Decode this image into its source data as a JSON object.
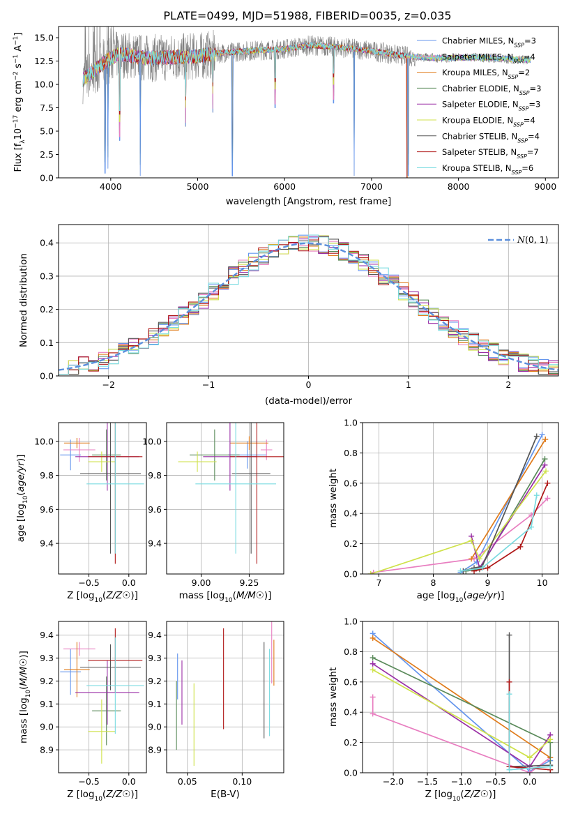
{
  "figure_title": "PLATE=0499, MJD=51988, FIBERID=0035, z=0.035",
  "series_colors": [
    "#6495ed",
    "#e87ec0",
    "#e07b1a",
    "#5a8a5a",
    "#9a2fa6",
    "#cfe24b",
    "#555555",
    "#b01818",
    "#7adbe0"
  ],
  "chart_data": [
    {
      "type": "line",
      "panel": "spectrum",
      "title": "PLATE=0499, MJD=51988, FIBERID=0035, z=0.035",
      "xlabel": "wavelength [Angstrom, rest frame]",
      "ylabel": "Flux [f_λ10^-17 erg cm^-2 s^-1 A^-1]",
      "xlim": [
        3400,
        9150
      ],
      "ylim": [
        0,
        16.2
      ],
      "xticks": [
        4000,
        5000,
        6000,
        7000,
        8000,
        9000
      ],
      "yticks": [
        0.0,
        2.5,
        5.0,
        7.5,
        10.0,
        12.5,
        15.0
      ],
      "grid": false,
      "legend_position": "top-right",
      "data_range": [
        3680,
        8830
      ],
      "continuum_knots": [
        [
          3680,
          10.5
        ],
        [
          3900,
          12.2
        ],
        [
          4100,
          13.3
        ],
        [
          4400,
          12.8
        ],
        [
          4700,
          12.9
        ],
        [
          5000,
          13.0
        ],
        [
          5300,
          13.4
        ],
        [
          5600,
          13.6
        ],
        [
          6000,
          13.8
        ],
        [
          6300,
          14.2
        ],
        [
          6600,
          14.0
        ],
        [
          7000,
          13.6
        ],
        [
          7400,
          13.0
        ],
        [
          7800,
          12.8
        ],
        [
          8200,
          12.9
        ],
        [
          8600,
          12.7
        ],
        [
          8830,
          12.6
        ]
      ],
      "absorption_dips": [
        [
          3934,
          0.5
        ],
        [
          3968,
          1.0
        ],
        [
          4102,
          4.0
        ],
        [
          4340,
          0.2
        ],
        [
          4861,
          5.5
        ],
        [
          5175,
          7.0
        ],
        [
          5400,
          0.2
        ],
        [
          5890,
          7.5
        ],
        [
          6563,
          8.0
        ],
        [
          6800,
          0.2
        ],
        [
          7420,
          0.2
        ]
      ],
      "series": [
        {
          "name": "Chabrier MILES, N_SSP=3"
        },
        {
          "name": "Salpeter MILES, N_SSP=4"
        },
        {
          "name": "Kroupa MILES, N_SSP=2"
        },
        {
          "name": "Chabrier ELODIE, N_SSP=3"
        },
        {
          "name": "Salpeter ELODIE, N_SSP=3"
        },
        {
          "name": "Kroupa ELODIE, N_SSP=4"
        },
        {
          "name": "Chabrier STELIB, N_SSP=4"
        },
        {
          "name": "Salpeter STELIB, N_SSP=7"
        },
        {
          "name": "Kroupa STELIB, N_SSP=6"
        }
      ]
    },
    {
      "type": "line",
      "panel": "residuals",
      "xlabel": "(data-model)/error",
      "ylabel": "Normed distribution",
      "xlim": [
        -2.5,
        2.5
      ],
      "ylim": [
        0,
        0.455
      ],
      "xticks": [
        -2,
        -1,
        0,
        1,
        2
      ],
      "yticks": [
        0.0,
        0.1,
        0.2,
        0.3,
        0.4
      ],
      "grid": true,
      "legend_position": "top-right",
      "legend": "N(0,1)",
      "bin_width": 0.1
    },
    {
      "type": "scatter",
      "panel": "age_vs_Z",
      "xlabel": "Z [log10(Z/Z☉)]",
      "ylabel": "age [log10(age/yr)]",
      "xlim": [
        -0.88,
        0.22
      ],
      "ylim": [
        9.22,
        10.11
      ],
      "xticks": [
        -0.5,
        0.0
      ],
      "yticks": [
        9.4,
        9.6,
        9.8,
        10.0
      ],
      "grid": true,
      "points": [
        {
          "x": -0.73,
          "y": 9.92,
          "xerr": 0.13,
          "yerr": 0.09
        },
        {
          "x": -0.62,
          "y": 9.95,
          "xerr": 0.2,
          "yerr": 0.07
        },
        {
          "x": -0.65,
          "y": 9.99,
          "xerr": 0.16,
          "yerr": 0.03
        },
        {
          "x": -0.28,
          "y": 9.92,
          "xerr": 0.18,
          "yerr": 0.15
        },
        {
          "x": -0.27,
          "y": 9.91,
          "xerr": 0.4,
          "yerr": 0.2
        },
        {
          "x": -0.34,
          "y": 9.88,
          "xerr": 0.17,
          "yerr": 0.06
        },
        {
          "x": -0.23,
          "y": 9.81,
          "xerr": 0.38,
          "yerr": 0.47
        },
        {
          "x": -0.17,
          "y": 9.91,
          "xerr": 0.34,
          "yerr": 0.63
        },
        {
          "x": -0.17,
          "y": 9.75,
          "xerr": 0.36,
          "yerr": 0.41
        }
      ]
    },
    {
      "type": "scatter",
      "panel": "age_vs_mass",
      "xlabel": "mass [log10(M/M☉)]",
      "ylabel": "",
      "xlim": [
        8.82,
        9.43
      ],
      "ylim": [
        9.22,
        10.11
      ],
      "xticks": [
        9.0,
        9.25
      ],
      "yticks": [
        9.4,
        9.6,
        9.8,
        10.0
      ],
      "grid": true,
      "points": [
        {
          "x": 9.24,
          "y": 9.92,
          "xerr": 0.1,
          "yerr": 0.08
        },
        {
          "x": 9.34,
          "y": 9.95,
          "xerr": 0.03,
          "yerr": 0.06
        },
        {
          "x": 9.25,
          "y": 9.99,
          "xerr": 0.1,
          "yerr": 0.04
        },
        {
          "x": 9.07,
          "y": 9.92,
          "xerr": 0.13,
          "yerr": 0.15
        },
        {
          "x": 9.15,
          "y": 9.91,
          "xerr": 0.14,
          "yerr": 0.2
        },
        {
          "x": 8.98,
          "y": 9.88,
          "xerr": 0.1,
          "yerr": 0.06
        },
        {
          "x": 9.26,
          "y": 9.81,
          "xerr": 0.1,
          "yerr": 0.47
        },
        {
          "x": 9.29,
          "y": 9.91,
          "xerr": 0.14,
          "yerr": 0.63
        },
        {
          "x": 9.18,
          "y": 9.75,
          "xerr": 0.21,
          "yerr": 0.41
        }
      ]
    },
    {
      "type": "line",
      "panel": "massweight_vs_age",
      "xlabel": "age [log10(age/yr)]",
      "ylabel": "mass weight",
      "xlim": [
        6.7,
        10.3
      ],
      "ylim": [
        0,
        1.0
      ],
      "xticks": [
        7,
        8,
        9,
        10
      ],
      "yticks": [
        0.0,
        0.2,
        0.4,
        0.6,
        0.8,
        1.0
      ],
      "grid": true,
      "series": [
        {
          "ages": [
            8.5,
            8.8,
            10.0
          ],
          "weights": [
            0.01,
            0.08,
            0.92
          ]
        },
        {
          "ages": [
            6.9,
            8.75,
            9.8,
            10.1
          ],
          "weights": [
            0.01,
            0.1,
            0.39,
            0.5
          ]
        },
        {
          "ages": [
            8.7,
            10.06
          ],
          "weights": [
            0.1,
            0.89
          ]
        },
        {
          "ages": [
            8.6,
            8.85,
            10.05
          ],
          "weights": [
            0.02,
            0.03,
            0.76
          ]
        },
        {
          "ages": [
            8.7,
            8.85,
            10.05
          ],
          "weights": [
            0.25,
            0.04,
            0.72
          ]
        },
        {
          "ages": [
            6.85,
            8.7,
            8.85,
            10.07
          ],
          "weights": [
            0.0,
            0.22,
            0.1,
            0.68
          ]
        },
        {
          "ages": [
            8.55,
            8.75,
            8.9,
            9.9
          ],
          "weights": [
            0.02,
            0.04,
            0.05,
            0.91
          ]
        },
        {
          "ages": [
            8.75,
            9.0,
            9.6,
            10.1
          ],
          "weights": [
            0.02,
            0.04,
            0.18,
            0.6
          ]
        },
        {
          "ages": [
            8.5,
            8.9,
            9.8,
            9.9
          ],
          "weights": [
            0.02,
            0.04,
            0.31,
            0.52
          ]
        }
      ]
    },
    {
      "type": "scatter",
      "panel": "mass_vs_Z",
      "xlabel": "Z [log10(Z/Z☉)]",
      "ylabel": "mass [log10(M/M☉)]",
      "xlim": [
        -0.88,
        0.22
      ],
      "ylim": [
        8.8,
        9.46
      ],
      "xticks": [
        -0.5,
        0.0
      ],
      "yticks": [
        8.9,
        9.0,
        9.1,
        9.2,
        9.3,
        9.4
      ],
      "grid": true,
      "points": [
        {
          "x": -0.73,
          "y": 9.24,
          "xerr": 0.13,
          "yerr": 0.1
        },
        {
          "x": -0.62,
          "y": 9.34,
          "xerr": 0.2,
          "yerr": 0.03
        },
        {
          "x": -0.65,
          "y": 9.25,
          "xerr": 0.16,
          "yerr": 0.12
        },
        {
          "x": -0.28,
          "y": 9.07,
          "xerr": 0.18,
          "yerr": 0.15
        },
        {
          "x": -0.27,
          "y": 9.15,
          "xerr": 0.4,
          "yerr": 0.14
        },
        {
          "x": -0.34,
          "y": 8.98,
          "xerr": 0.17,
          "yerr": 0.14
        },
        {
          "x": -0.23,
          "y": 9.26,
          "xerr": 0.38,
          "yerr": 0.1
        },
        {
          "x": -0.17,
          "y": 9.29,
          "xerr": 0.34,
          "yerr": 0.14
        },
        {
          "x": -0.17,
          "y": 9.18,
          "xerr": 0.36,
          "yerr": 0.21
        }
      ]
    },
    {
      "type": "scatter",
      "panel": "mass_vs_ebv",
      "xlabel": "E(B-V)",
      "ylabel": "",
      "xlim": [
        0.031,
        0.138
      ],
      "ylim": [
        8.8,
        9.46
      ],
      "xticks": [
        0.05,
        0.1
      ],
      "yticks": [
        8.9,
        9.0,
        9.1,
        9.2,
        9.3,
        9.4
      ],
      "grid": true,
      "points": [
        {
          "x": 0.041,
          "y": 9.22,
          "yerr": 0.1
        },
        {
          "x": 0.127,
          "y": 9.35,
          "yerr": 0.16
        },
        {
          "x": 0.129,
          "y": 9.28,
          "yerr": 0.1
        },
        {
          "x": 0.04,
          "y": 9.05,
          "yerr": 0.15
        },
        {
          "x": 0.045,
          "y": 9.15,
          "yerr": 0.14
        },
        {
          "x": 0.056,
          "y": 9.01,
          "yerr": 0.18
        },
        {
          "x": 0.12,
          "y": 9.16,
          "yerr": 0.21
        },
        {
          "x": 0.083,
          "y": 9.21,
          "yerr": 0.22
        },
        {
          "x": 0.125,
          "y": 9.15,
          "yerr": 0.19
        }
      ]
    },
    {
      "type": "line",
      "panel": "massweight_vs_Z",
      "xlabel": "Z [log10(Z/Z☉)]",
      "ylabel": "mass weight",
      "xlim": [
        -2.45,
        0.42
      ],
      "ylim": [
        0,
        1.0
      ],
      "xticks": [
        -2.0,
        -1.5,
        -1.0,
        -0.5,
        0.0
      ],
      "yticks": [
        0.0,
        0.2,
        0.4,
        0.6,
        0.8,
        1.0
      ],
      "grid": true,
      "series": [
        {
          "Z": [
            -2.3,
            0.0,
            0.3
          ],
          "weights": [
            0.92,
            0.01,
            0.08
          ]
        },
        {
          "Z": [
            -2.3,
            -2.3,
            0.0,
            0.3
          ],
          "weights": [
            0.5,
            0.39,
            0.0,
            0.1
          ]
        },
        {
          "Z": [
            -2.3,
            0.3
          ],
          "weights": [
            0.89,
            0.1
          ]
        },
        {
          "Z": [
            -2.3,
            0.3,
            0.3
          ],
          "weights": [
            0.76,
            0.2,
            0.02
          ]
        },
        {
          "Z": [
            -2.3,
            0.0,
            0.3
          ],
          "weights": [
            0.72,
            0.04,
            0.25
          ]
        },
        {
          "Z": [
            -2.3,
            0.0,
            0.3
          ],
          "weights": [
            0.68,
            0.1,
            0.22
          ]
        },
        {
          "Z": [
            -0.3,
            -0.3,
            0.3
          ],
          "weights": [
            0.91,
            0.04,
            0.05
          ]
        },
        {
          "Z": [
            -0.3,
            -0.3,
            0.3
          ],
          "weights": [
            0.6,
            0.04,
            0.02
          ]
        },
        {
          "Z": [
            -0.3,
            -0.3,
            0.3
          ],
          "weights": [
            0.52,
            0.02,
            0.04
          ]
        }
      ]
    }
  ]
}
